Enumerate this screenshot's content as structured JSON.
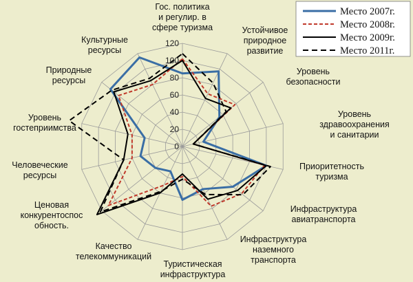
{
  "chart_data": {
    "type": "radar",
    "categories": [
      "Гос. политика\nи  регулир. в\nсфере туризма",
      "Устойчивое\nприродное\nразвитие",
      "Уровень\nбезопасности",
      "Уровень\nздравоохранения\nи санитарии",
      "Приоритетность\nтуризма",
      "Инфраструктура\nавиатранспорта",
      "Инфраструктура\nназемного\nтранспорта",
      "Туристическая\nинфраструктура",
      "Качество\nтелекоммуникаций",
      "Ценовая\nконкурентоспос\nобность.",
      "Человеческие\nресурсы",
      "Уровень\nгостеприимства",
      "Природные\nресурсы",
      "Культурные\nресурсы"
    ],
    "ylim": [
      0,
      120
    ],
    "ticks": [
      0,
      20,
      40,
      60,
      80,
      100,
      120
    ],
    "grid": true,
    "legend_position": "top-right",
    "series": [
      {
        "name": "Место 2007г.",
        "color": "#3a6ea5",
        "dash": "solid",
        "values": [
          85,
          97,
          55,
          25,
          100,
          75,
          55,
          62,
          32,
          40,
          50,
          45,
          107,
          115
        ]
      },
      {
        "name": "Место 2008г.",
        "color": "#c0392b",
        "dash": "dashed",
        "values": [
          102,
          68,
          78,
          13,
          98,
          88,
          77,
          35,
          50,
          110,
          60,
          60,
          95,
          80
        ]
      },
      {
        "name": "Место 2009г.",
        "color": "#000000",
        "dash": "solid",
        "values": [
          100,
          62,
          72,
          13,
          100,
          82,
          68,
          32,
          60,
          127,
          70,
          65,
          102,
          85
        ]
      },
      {
        "name": "Место 2011г.",
        "color": "#000000",
        "dash": "dashed",
        "values": [
          108,
          82,
          65,
          13,
          105,
          90,
          62,
          38,
          58,
          122,
          70,
          135,
          105,
          88
        ]
      }
    ]
  }
}
